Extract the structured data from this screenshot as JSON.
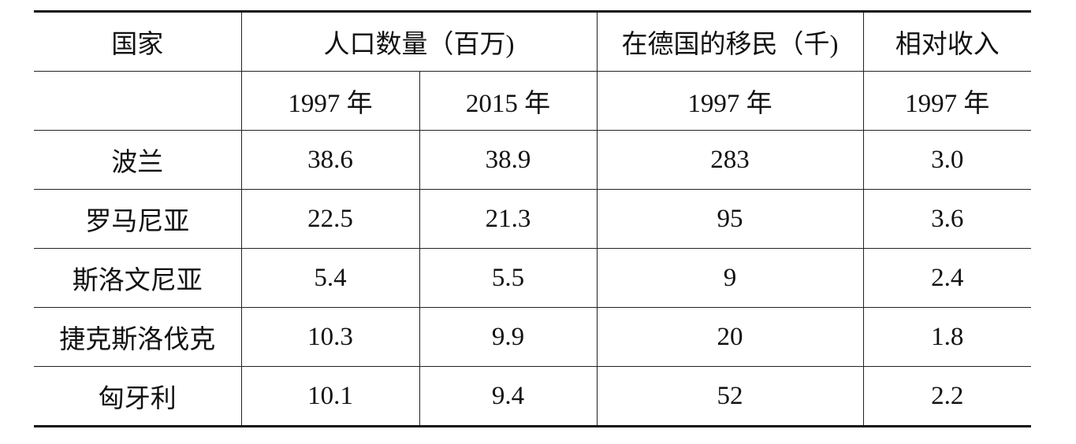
{
  "table": {
    "header": {
      "row1": [
        "国家",
        "人口数量（百万)",
        "在德国的移民（千)",
        "相对收入"
      ],
      "row2": [
        "1997 年",
        "2015 年",
        "1997 年",
        "1997 年"
      ]
    },
    "rows": [
      [
        "波兰",
        "38.6",
        "38.9",
        "283",
        "3.0"
      ],
      [
        "罗马尼亚",
        "22.5",
        "21.3",
        "95",
        "3.6"
      ],
      [
        "斯洛文尼亚",
        "5.4",
        "5.5",
        "9",
        "2.4"
      ],
      [
        "捷克斯洛伐克",
        "10.3",
        "9.9",
        "20",
        "1.8"
      ],
      [
        "匈牙利",
        "10.1",
        "9.4",
        "52",
        "2.2"
      ]
    ]
  }
}
